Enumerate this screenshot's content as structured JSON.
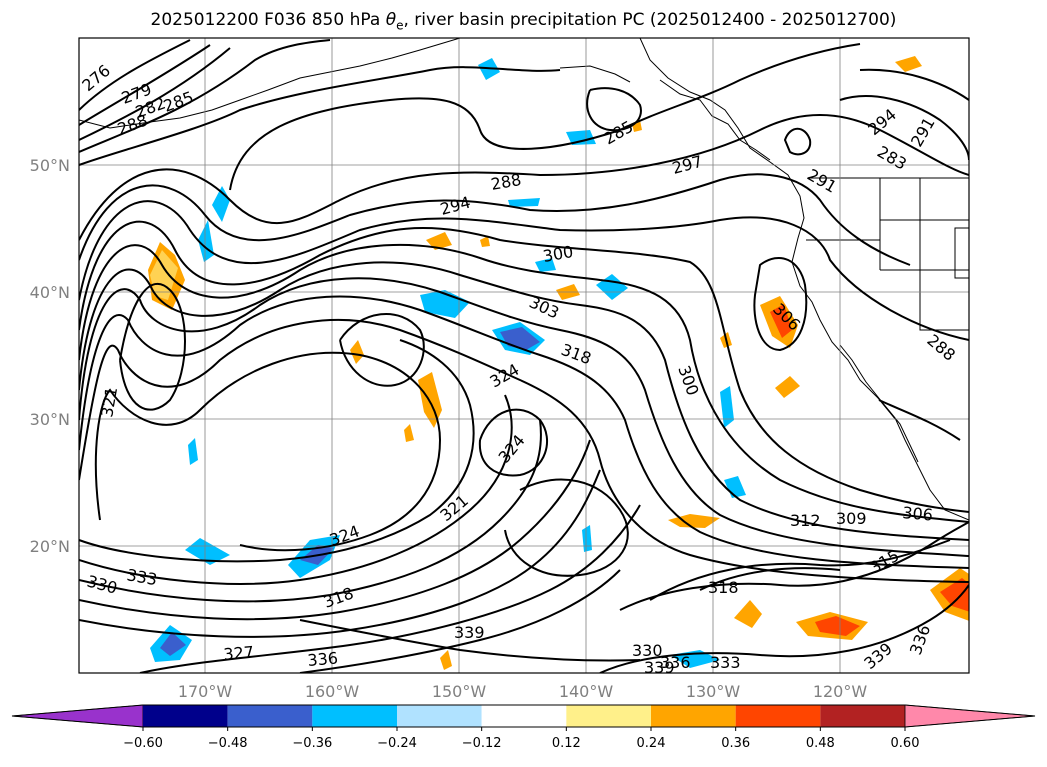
{
  "title": {
    "prefix": "2025012200 F036 850 hPa ",
    "theta": "θ",
    "sub": "e",
    "suffix": ", river basin precipitation PC (2025012400 - 2025012700)"
  },
  "lat_labels": [
    "50°N",
    "40°N",
    "30°N",
    "20°N"
  ],
  "lon_labels": [
    "170°W",
    "160°W",
    "150°W",
    "140°W",
    "130°W",
    "120°W"
  ],
  "contour_labels": [
    "276",
    "279",
    "282",
    "285",
    "288",
    "285",
    "288",
    "294",
    "297",
    "291",
    "294",
    "291",
    "283",
    "300",
    "303",
    "318",
    "324",
    "300",
    "306",
    "288",
    "321",
    "324",
    "321",
    "312",
    "309",
    "306",
    "315",
    "318",
    "330",
    "333",
    "318",
    "327",
    "339",
    "330",
    "336",
    "333",
    "339",
    "336",
    "336",
    "339",
    "324"
  ],
  "colorbar": {
    "ticks": [
      "−0.60",
      "−0.48",
      "−0.36",
      "−0.24",
      "−0.12",
      "0.12",
      "0.24",
      "0.36",
      "0.48",
      "0.60"
    ],
    "colors": [
      "#9932cc",
      "#00008b",
      "#3a5fcd",
      "#00bfff",
      "#b0e2ff",
      "#ffffff",
      "#fff08a",
      "#ffa500",
      "#ff4500",
      "#b22222",
      "#ff88aa"
    ]
  }
}
